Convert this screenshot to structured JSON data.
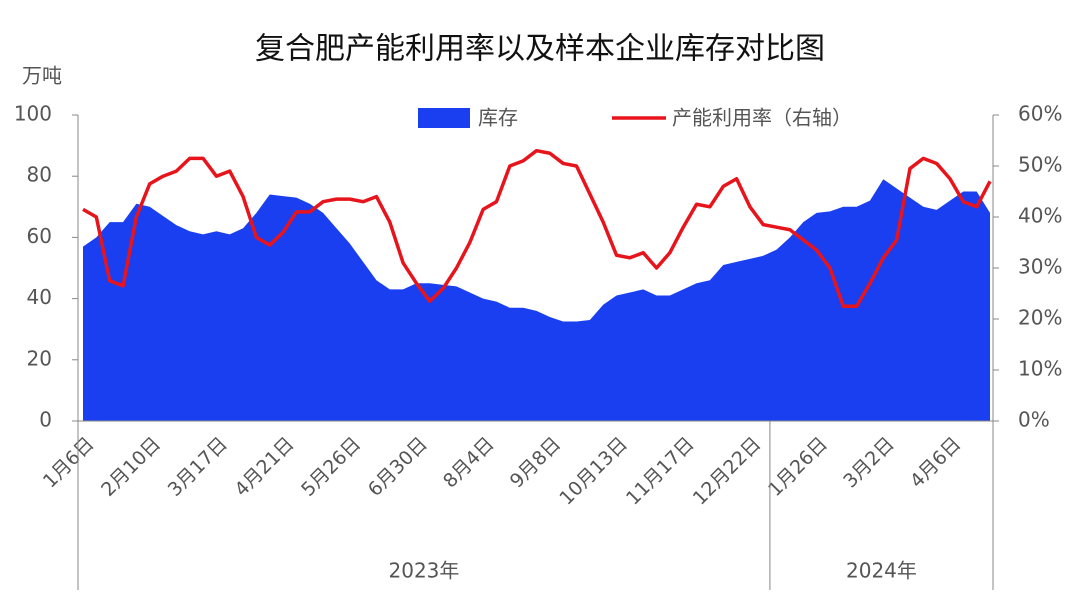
{
  "chart_data": {
    "type": "area-line",
    "title": "复合肥产能利用率以及样本企业库存对比图",
    "y_unit": "万吨",
    "categories": [
      "1月6日",
      null,
      null,
      null,
      null,
      "2月10日",
      null,
      null,
      null,
      null,
      "3月17日",
      null,
      null,
      null,
      null,
      "4月21日",
      null,
      null,
      null,
      null,
      "5月26日",
      null,
      null,
      null,
      null,
      "6月30日",
      null,
      null,
      null,
      null,
      "8月4日",
      null,
      null,
      null,
      null,
      "9月8日",
      null,
      null,
      null,
      null,
      "10月13日",
      null,
      null,
      null,
      null,
      "11月17日",
      null,
      null,
      null,
      null,
      "12月22日",
      null,
      null,
      null,
      null,
      "1月26日",
      null,
      null,
      null,
      null,
      "3月2日",
      null,
      null,
      null,
      null,
      "4月6日",
      null,
      null,
      null
    ],
    "groups": [
      {
        "label": "2023年",
        "count": 52
      },
      {
        "label": "2024年",
        "count": 17
      }
    ],
    "series": [
      {
        "name": "库存",
        "color": "#1a3ff0",
        "kind": "area",
        "values": [
          57,
          60,
          65,
          65,
          71,
          70,
          67,
          64,
          62,
          61,
          62,
          61,
          63,
          68,
          74,
          73.5,
          73,
          71,
          68,
          63,
          58,
          52,
          46,
          43,
          43,
          45,
          45,
          44.5,
          44,
          42,
          40,
          39,
          37,
          37,
          36,
          34,
          32.5,
          32.5,
          33,
          38,
          41,
          42,
          43,
          41,
          41,
          43,
          45,
          46,
          51,
          52,
          53,
          54,
          56,
          60,
          65,
          68,
          68.5,
          70,
          70,
          72,
          79,
          76,
          73,
          70,
          69,
          72,
          75,
          75,
          68
        ]
      },
      {
        "name": "产能利用率（右轴）",
        "color": "#e8141c",
        "kind": "line",
        "axis": "y2",
        "values": [
          41.5,
          40,
          27.5,
          26.5,
          40,
          46.5,
          48,
          49,
          51.5,
          51.5,
          48,
          49,
          44,
          36,
          34.5,
          37,
          41,
          41,
          43,
          43.5,
          43.5,
          43,
          44,
          39,
          31,
          27,
          23.5,
          26,
          30,
          35,
          41.5,
          43,
          50,
          51,
          53,
          52.5,
          50.5,
          50,
          44.5,
          39,
          32.5,
          32,
          33,
          30,
          33,
          38,
          42.5,
          42,
          46,
          47.5,
          42,
          38.5,
          38,
          37.5,
          35.5,
          33.5,
          30,
          22.5,
          22.5,
          27,
          32,
          35.5,
          49.5,
          51.5,
          50.5,
          47.5,
          43,
          42,
          47
        ]
      }
    ],
    "ylim": [
      0,
      100
    ],
    "yticks": [
      0,
      20,
      40,
      60,
      80,
      100
    ],
    "y2lim": [
      0,
      60
    ],
    "y2ticks": [
      {
        "value": 0,
        "label": "0%"
      },
      {
        "value": 10,
        "label": "10%"
      },
      {
        "value": 20,
        "label": "20%"
      },
      {
        "value": 30,
        "label": "30%"
      },
      {
        "value": 40,
        "label": "40%"
      },
      {
        "value": 50,
        "label": "50%"
      },
      {
        "value": 60,
        "label": "60%"
      }
    ],
    "legend": "top"
  }
}
